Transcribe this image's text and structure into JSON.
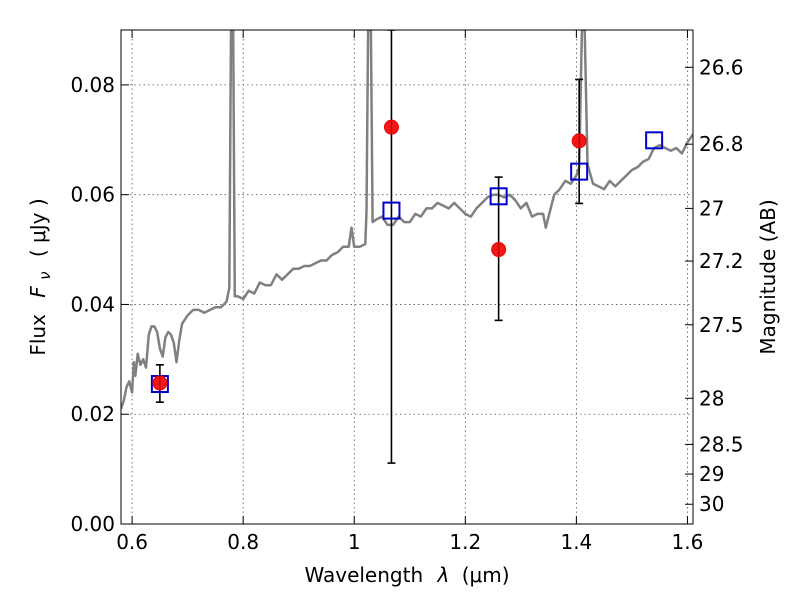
{
  "chart_data": {
    "type": "scatter",
    "xlabel_text": "Wavelength",
    "xlabel_symbol": "λ",
    "xlabel_unit": "(μm)",
    "ylabel_text": "Flux",
    "ylabel_symbol": "F",
    "ylabel_subscript": "ν",
    "ylabel_unit": "( μJy )",
    "y2label": "Magnitude (AB)",
    "xlim": [
      0.58,
      1.61
    ],
    "ylim": [
      0.0,
      0.09
    ],
    "grid": true,
    "x_ticks": [
      0.6,
      0.8,
      1.0,
      1.2,
      1.4,
      1.6
    ],
    "x_tick_labels": [
      "0.6",
      "0.8",
      "1",
      "1.2",
      "1.4",
      "1.6"
    ],
    "y_ticks": [
      0.0,
      0.02,
      0.04,
      0.06,
      0.08
    ],
    "y_tick_labels": [
      "0.00",
      "0.02",
      "0.04",
      "0.06",
      "0.08"
    ],
    "y2_ticks": [
      {
        "label": "26.6",
        "flux": 0.0832
      },
      {
        "label": "26.8",
        "flux": 0.0692
      },
      {
        "label": "27",
        "flux": 0.0575
      },
      {
        "label": "27.2",
        "flux": 0.0479
      },
      {
        "label": "27.5",
        "flux": 0.0363
      },
      {
        "label": "28",
        "flux": 0.0229
      },
      {
        "label": "28.5",
        "flux": 0.0145
      },
      {
        "label": "29",
        "flux": 0.0091
      },
      {
        "label": "30",
        "flux": 0.0036
      }
    ],
    "colors": {
      "model": "#808080",
      "observed": "#ee0000",
      "synthetic": "#0000cc",
      "errorbar": "#000000"
    },
    "series": [
      {
        "role": "model_spectrum",
        "points": [
          [
            0.58,
            0.021
          ],
          [
            0.585,
            0.0225
          ],
          [
            0.59,
            0.025
          ],
          [
            0.595,
            0.026
          ],
          [
            0.6,
            0.024
          ],
          [
            0.603,
            0.0295
          ],
          [
            0.606,
            0.027
          ],
          [
            0.61,
            0.031
          ],
          [
            0.615,
            0.029
          ],
          [
            0.62,
            0.03
          ],
          [
            0.625,
            0.0285
          ],
          [
            0.63,
            0.0345
          ],
          [
            0.635,
            0.036
          ],
          [
            0.64,
            0.036
          ],
          [
            0.645,
            0.035
          ],
          [
            0.65,
            0.032
          ],
          [
            0.655,
            0.0305
          ],
          [
            0.66,
            0.034
          ],
          [
            0.665,
            0.035
          ],
          [
            0.67,
            0.0345
          ],
          [
            0.675,
            0.033
          ],
          [
            0.68,
            0.0295
          ],
          [
            0.685,
            0.0335
          ],
          [
            0.69,
            0.0365
          ],
          [
            0.7,
            0.038
          ],
          [
            0.71,
            0.039
          ],
          [
            0.72,
            0.039
          ],
          [
            0.73,
            0.0385
          ],
          [
            0.74,
            0.039
          ],
          [
            0.75,
            0.0395
          ],
          [
            0.76,
            0.0395
          ],
          [
            0.77,
            0.0405
          ],
          [
            0.775,
            0.043
          ],
          [
            0.778,
            0.09
          ],
          [
            0.782,
            0.09
          ],
          [
            0.785,
            0.0415
          ],
          [
            0.79,
            0.0415
          ],
          [
            0.8,
            0.041
          ],
          [
            0.81,
            0.0425
          ],
          [
            0.82,
            0.042
          ],
          [
            0.83,
            0.044
          ],
          [
            0.84,
            0.0435
          ],
          [
            0.85,
            0.0435
          ],
          [
            0.86,
            0.0455
          ],
          [
            0.87,
            0.0445
          ],
          [
            0.88,
            0.0455
          ],
          [
            0.89,
            0.0465
          ],
          [
            0.9,
            0.0465
          ],
          [
            0.91,
            0.047
          ],
          [
            0.92,
            0.047
          ],
          [
            0.93,
            0.0475
          ],
          [
            0.94,
            0.048
          ],
          [
            0.95,
            0.048
          ],
          [
            0.96,
            0.049
          ],
          [
            0.97,
            0.0495
          ],
          [
            0.98,
            0.0505
          ],
          [
            0.99,
            0.0505
          ],
          [
            0.995,
            0.054
          ],
          [
            1.0,
            0.0505
          ],
          [
            1.01,
            0.0505
          ],
          [
            1.02,
            0.051
          ],
          [
            1.022,
            0.057
          ],
          [
            1.025,
            0.09
          ],
          [
            1.03,
            0.09
          ],
          [
            1.033,
            0.055
          ],
          [
            1.04,
            0.0555
          ],
          [
            1.05,
            0.056
          ],
          [
            1.06,
            0.0545
          ],
          [
            1.07,
            0.0545
          ],
          [
            1.08,
            0.056
          ],
          [
            1.09,
            0.055
          ],
          [
            1.1,
            0.055
          ],
          [
            1.11,
            0.0565
          ],
          [
            1.12,
            0.056
          ],
          [
            1.13,
            0.0575
          ],
          [
            1.14,
            0.0575
          ],
          [
            1.15,
            0.0585
          ],
          [
            1.16,
            0.058
          ],
          [
            1.17,
            0.0575
          ],
          [
            1.18,
            0.0585
          ],
          [
            1.19,
            0.0575
          ],
          [
            1.2,
            0.0565
          ],
          [
            1.21,
            0.056
          ],
          [
            1.22,
            0.0575
          ],
          [
            1.23,
            0.0585
          ],
          [
            1.24,
            0.0595
          ],
          [
            1.25,
            0.06
          ],
          [
            1.26,
            0.06
          ],
          [
            1.27,
            0.0595
          ],
          [
            1.28,
            0.06
          ],
          [
            1.29,
            0.059
          ],
          [
            1.3,
            0.0575
          ],
          [
            1.31,
            0.0585
          ],
          [
            1.32,
            0.056
          ],
          [
            1.33,
            0.0565
          ],
          [
            1.34,
            0.0565
          ],
          [
            1.345,
            0.054
          ],
          [
            1.35,
            0.056
          ],
          [
            1.36,
            0.06
          ],
          [
            1.37,
            0.061
          ],
          [
            1.38,
            0.0625
          ],
          [
            1.39,
            0.062
          ],
          [
            1.4,
            0.0635
          ],
          [
            1.405,
            0.065
          ],
          [
            1.41,
            0.09
          ],
          [
            1.415,
            0.09
          ],
          [
            1.42,
            0.0655
          ],
          [
            1.43,
            0.062
          ],
          [
            1.44,
            0.0615
          ],
          [
            1.45,
            0.061
          ],
          [
            1.46,
            0.0625
          ],
          [
            1.47,
            0.0615
          ],
          [
            1.48,
            0.0625
          ],
          [
            1.49,
            0.0635
          ],
          [
            1.5,
            0.0645
          ],
          [
            1.51,
            0.065
          ],
          [
            1.52,
            0.066
          ],
          [
            1.53,
            0.0665
          ],
          [
            1.54,
            0.0685
          ],
          [
            1.55,
            0.069
          ],
          [
            1.56,
            0.0685
          ],
          [
            1.57,
            0.068
          ],
          [
            1.58,
            0.0685
          ],
          [
            1.59,
            0.0675
          ],
          [
            1.6,
            0.0695
          ],
          [
            1.61,
            0.071
          ]
        ]
      },
      {
        "role": "observed_photometry",
        "points": [
          {
            "x": 0.65,
            "y": 0.0257,
            "yerr_low": 0.0222,
            "yerr_high": 0.029
          },
          {
            "x": 1.067,
            "y": 0.0723,
            "yerr_low": 0.0111,
            "yerr_high": 0.09
          },
          {
            "x": 1.26,
            "y": 0.05,
            "yerr_low": 0.0371,
            "yerr_high": 0.0632
          },
          {
            "x": 1.405,
            "y": 0.0698,
            "yerr_low": 0.0584,
            "yerr_high": 0.081
          }
        ]
      },
      {
        "role": "model_photometry",
        "points": [
          {
            "x": 0.65,
            "y": 0.0255
          },
          {
            "x": 1.067,
            "y": 0.0571
          },
          {
            "x": 1.26,
            "y": 0.0597
          },
          {
            "x": 1.405,
            "y": 0.0642
          },
          {
            "x": 1.54,
            "y": 0.0699
          }
        ]
      }
    ]
  }
}
